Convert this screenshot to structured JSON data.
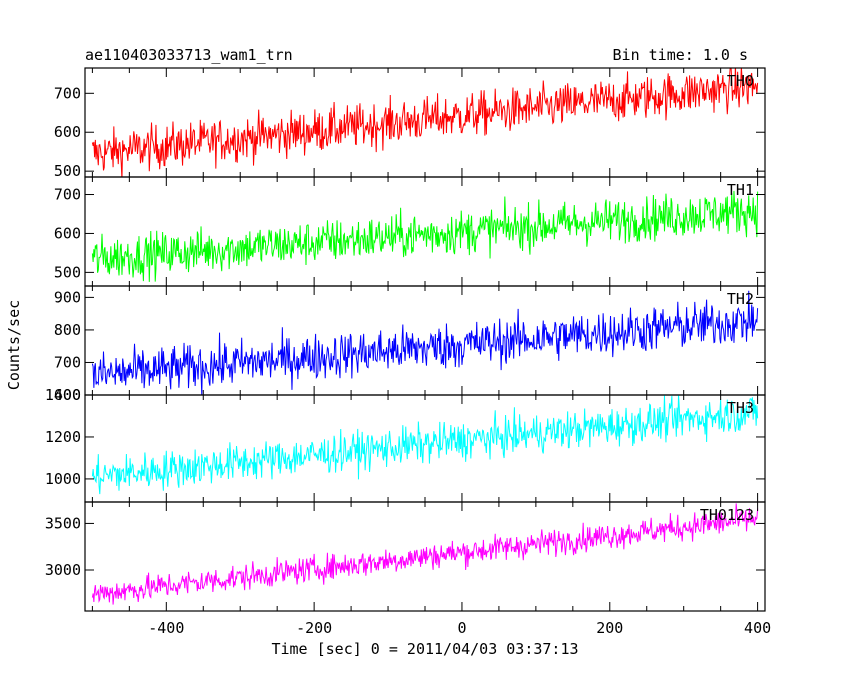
{
  "chart_data": {
    "type": "line",
    "title": "ae110403033713_wam1_trn",
    "bin_time_label": "Bin time: 1.0 s",
    "ylabel": "Counts/sec",
    "xlabel": "Time [sec] 0 = 2011/04/03 03:37:13",
    "xlim": [
      -510,
      410
    ],
    "x_ticks": [
      -400,
      -200,
      0,
      200,
      400
    ],
    "x_range": [
      -500,
      400
    ],
    "bin_time": 1.0,
    "series": [
      {
        "name": "TH0",
        "color": "#ff0000",
        "ylim": [
          485,
          765
        ],
        "y_ticks": [
          500,
          600,
          700
        ],
        "trend_start": 545,
        "trend_end": 720,
        "noise": 28
      },
      {
        "name": "TH1",
        "color": "#00ff00",
        "ylim": [
          465,
          745
        ],
        "y_ticks": [
          500,
          600,
          700
        ],
        "trend_start": 535,
        "trend_end": 660,
        "noise": 28
      },
      {
        "name": "TH2",
        "color": "#0000ff",
        "ylim": [
          600,
          935
        ],
        "y_ticks": [
          600,
          700,
          800,
          900
        ],
        "trend_start": 660,
        "trend_end": 830,
        "noise": 35
      },
      {
        "name": "TH3",
        "color": "#00ffff",
        "ylim": [
          890,
          1400
        ],
        "y_ticks": [
          1000,
          1200,
          1400
        ],
        "trend_start": 1010,
        "trend_end": 1320,
        "noise": 45
      },
      {
        "name": "TH0123",
        "color": "#ff00ff",
        "ylim": [
          2560,
          3730
        ],
        "y_ticks": [
          3000,
          3500
        ],
        "trend_start": 2740,
        "trend_end": 3550,
        "noise": 70
      }
    ]
  }
}
